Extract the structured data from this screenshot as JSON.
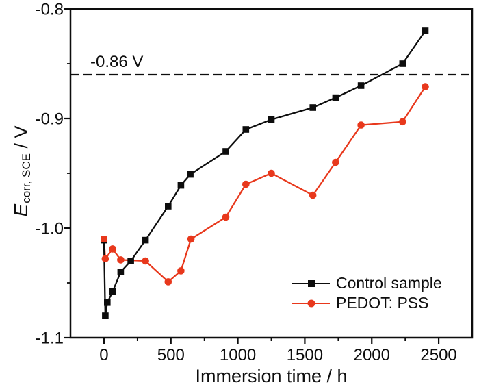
{
  "figure": {
    "background": "#ffffff",
    "axis_color": "#0d0d0d"
  },
  "chart_data": {
    "type": "line",
    "title": "",
    "xlabel": "Immersion time / h",
    "ylabel": "E_corr, SCE / V",
    "ylabel_parts": {
      "main": "E",
      "sub": "corr, SCE",
      "unit": " / V"
    },
    "xlim": [
      -250,
      2750
    ],
    "ylim": [
      -1.1,
      -0.8
    ],
    "grid": false,
    "x_major_ticks": [
      {
        "v": 0,
        "label": "0"
      },
      {
        "v": 500,
        "label": "500"
      },
      {
        "v": 1000,
        "label": "1000"
      },
      {
        "v": 1500,
        "label": "1500"
      },
      {
        "v": 2000,
        "label": "2000"
      },
      {
        "v": 2500,
        "label": "2500"
      }
    ],
    "x_minor_ticks": [
      250,
      750,
      1250,
      1750,
      2250
    ],
    "y_major_ticks": [
      {
        "v": -0.8,
        "label": "-0.8"
      },
      {
        "v": -0.9,
        "label": "-0.9"
      },
      {
        "v": -1.0,
        "label": "-1.0"
      },
      {
        "v": -1.1,
        "label": "-1.1"
      }
    ],
    "y_minor_ticks": [
      -0.85,
      -0.95,
      -1.05
    ],
    "reference_line": {
      "value": -0.86,
      "label": "-0.86 V",
      "style": "dashed",
      "color": "#0d0d0d"
    },
    "series": [
      {
        "name": "Control sample",
        "color": "#0d0d0d",
        "marker": "square",
        "x": [
          0,
          10,
          25,
          65,
          125,
          200,
          310,
          480,
          575,
          645,
          910,
          1060,
          1250,
          1560,
          1730,
          1920,
          2230,
          2400
        ],
        "y": [
          -1.011,
          -1.08,
          -1.068,
          -1.058,
          -1.04,
          -1.03,
          -1.011,
          -0.98,
          -0.961,
          -0.951,
          -0.93,
          -0.91,
          -0.901,
          -0.89,
          -0.881,
          -0.87,
          -0.85,
          -0.82
        ]
      },
      {
        "name": "PEDOT: PSS",
        "color": "#e8381c",
        "marker": "circle",
        "first_marker": "square",
        "x": [
          0,
          10,
          65,
          125,
          310,
          480,
          575,
          650,
          910,
          1060,
          1250,
          1560,
          1730,
          1920,
          2230,
          2400
        ],
        "y": [
          -1.01,
          -1.028,
          -1.019,
          -1.029,
          -1.03,
          -1.049,
          -1.039,
          -1.01,
          -0.99,
          -0.96,
          -0.95,
          -0.97,
          -0.94,
          -0.906,
          -0.903,
          -0.871
        ]
      }
    ],
    "legend": {
      "position": "lower right"
    }
  }
}
